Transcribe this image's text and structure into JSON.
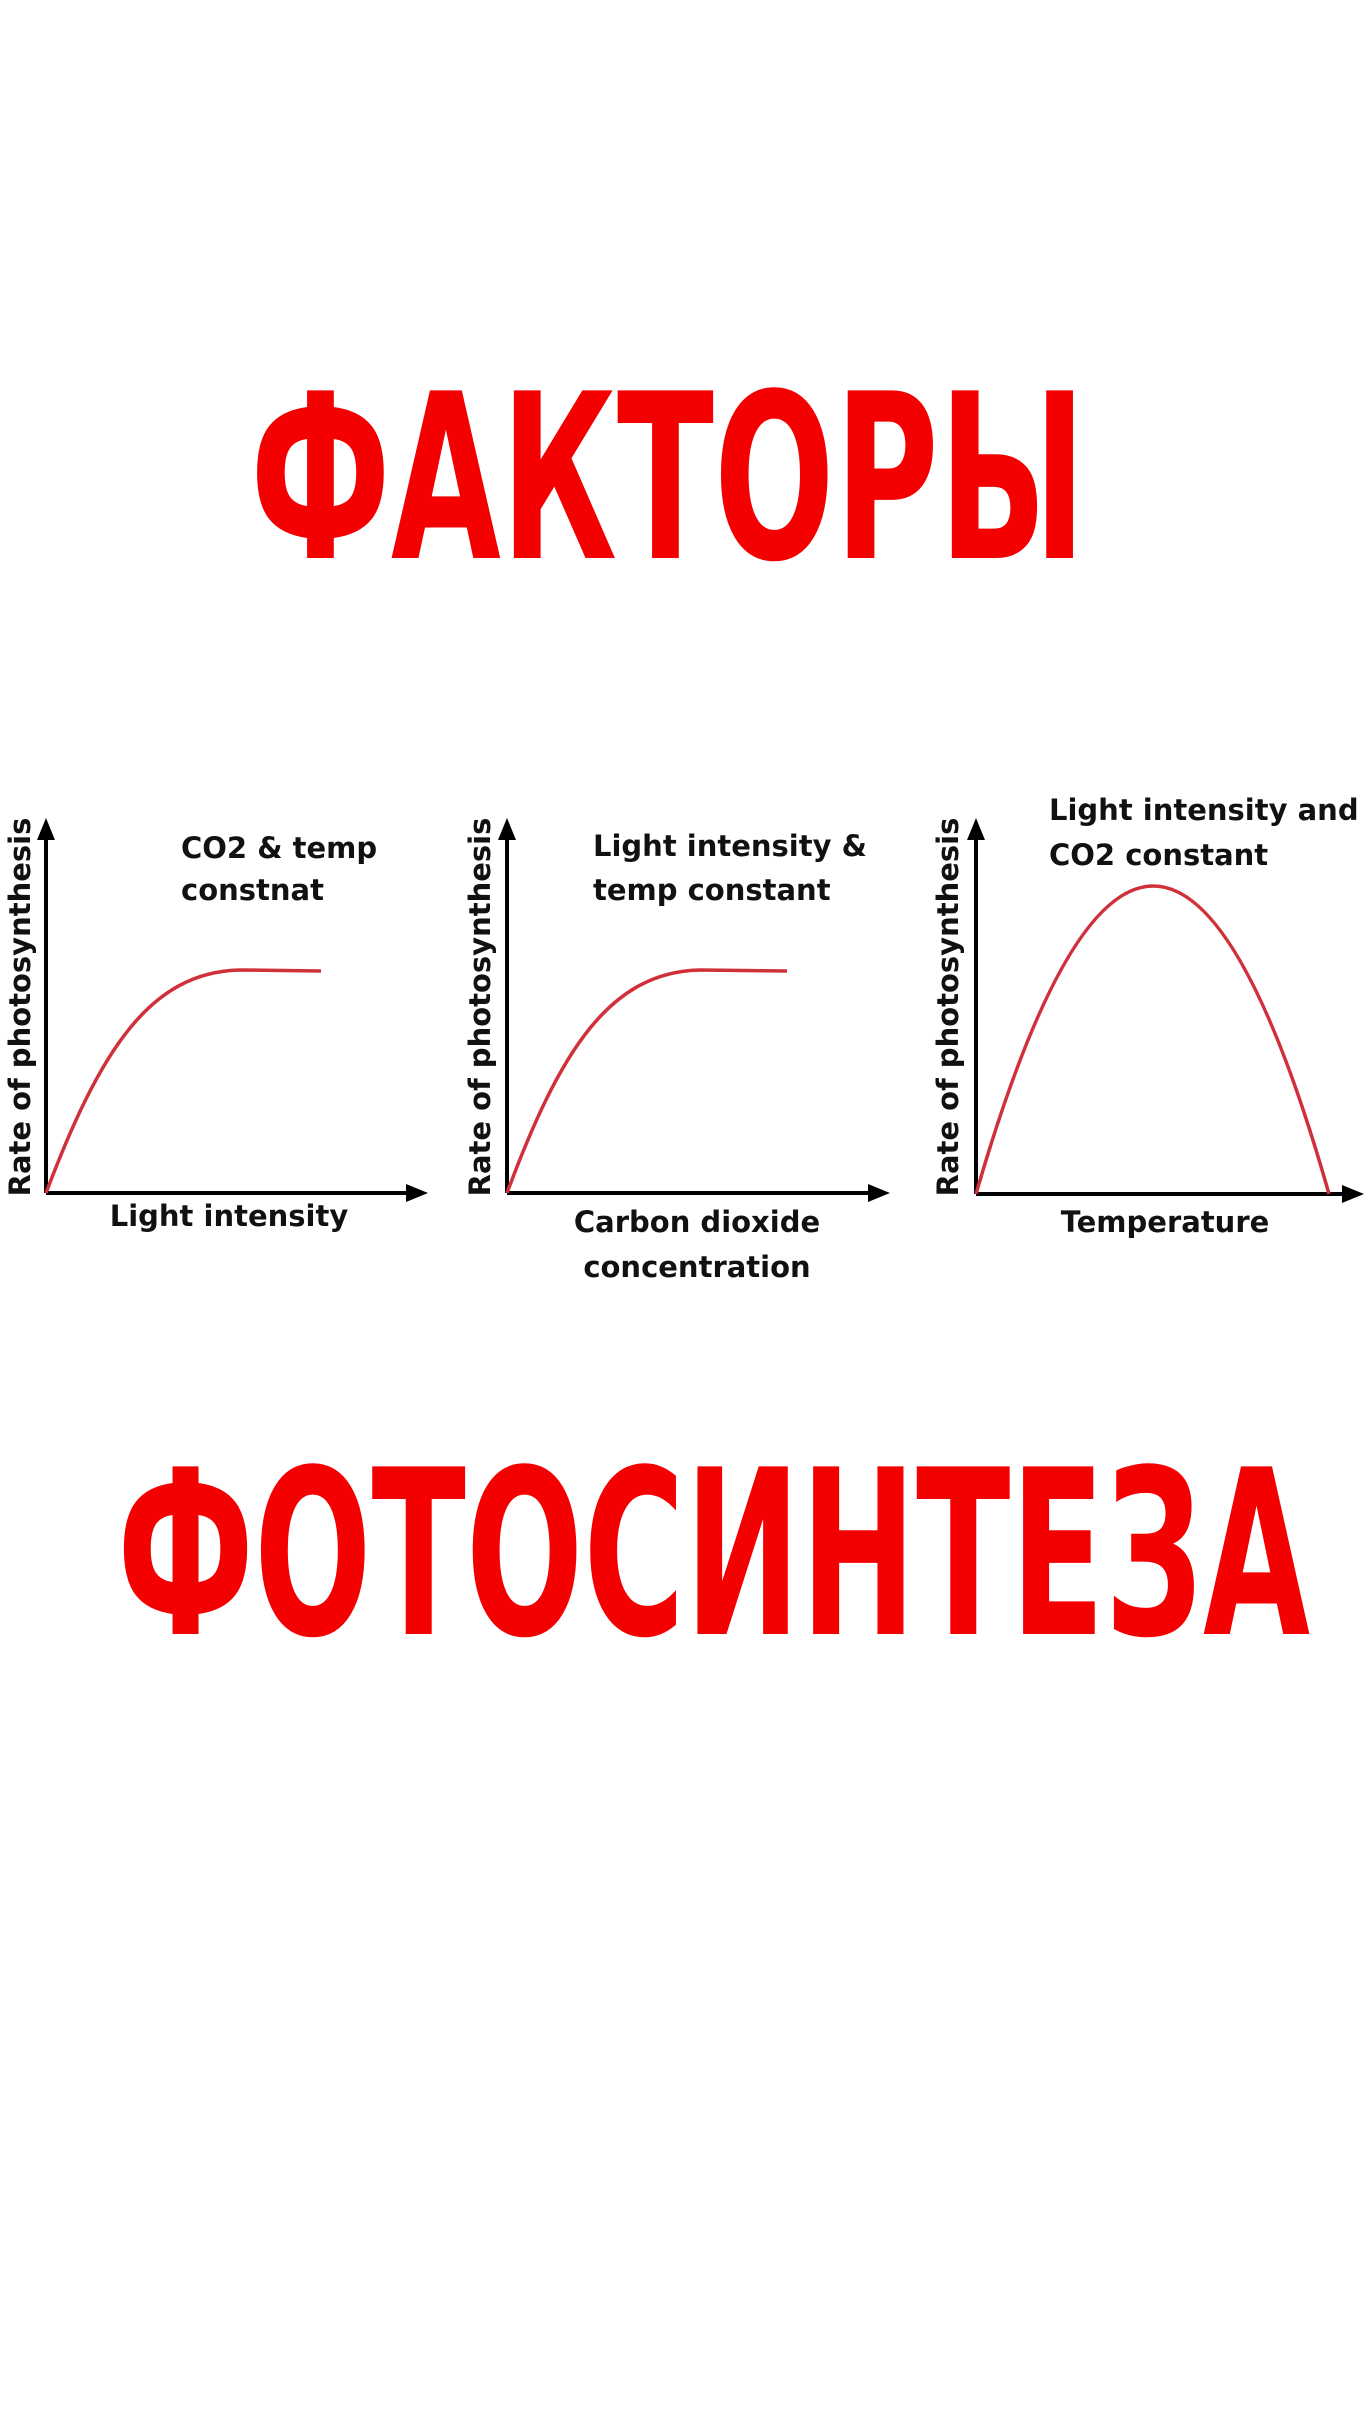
{
  "title_top": "ФАКТОРЫ",
  "graphs": [
    {
      "note": [
        "CO2 & temp",
        "constnat"
      ],
      "y_label": "Rate of photosynthesis",
      "x_label": [
        "Light intensity"
      ]
    },
    {
      "note": [
        "Light intensity &",
        "temp constant"
      ],
      "y_label": "Rate of photosynthesis",
      "x_label": [
        "Carbon dioxide",
        "concentration"
      ]
    },
    {
      "note": [
        "Light intensity and",
        "CO2 constant"
      ],
      "y_label": "Rate of photosynthesis",
      "x_label": [
        "Temperature"
      ]
    }
  ],
  "title_bottom": "ФОТОСИНТЕЗА"
}
